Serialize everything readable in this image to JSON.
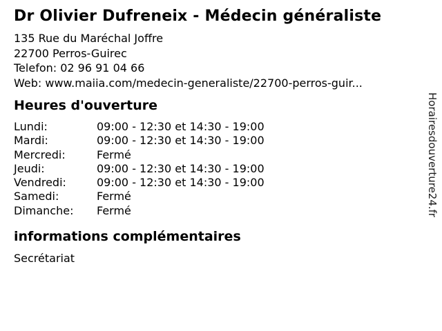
{
  "header": {
    "title": "Dr Olivier Dufreneix - Médecin généraliste"
  },
  "contact": {
    "address_line1": "135 Rue du Maréchal Joffre",
    "address_line2": "22700 Perros-Guirec",
    "phone_label": "Telefon:",
    "phone_number": "02 96 91 04 66",
    "web_label": "Web:",
    "web_url": "www.maiia.com/medecin-generaliste/22700-perros-guir..."
  },
  "hours": {
    "heading": "Heures d'ouverture",
    "rows": [
      {
        "day": "Lundi:",
        "time": "09:00 - 12:30 et 14:30 - 19:00"
      },
      {
        "day": "Mardi:",
        "time": "09:00 - 12:30 et 14:30 - 19:00"
      },
      {
        "day": "Mercredi:",
        "time": "Fermé"
      },
      {
        "day": "Jeudi:",
        "time": "09:00 - 12:30 et 14:30 - 19:00"
      },
      {
        "day": "Vendredi:",
        "time": "09:00 - 12:30 et 14:30 - 19:00"
      },
      {
        "day": "Samedi:",
        "time": "Fermé"
      },
      {
        "day": "Dimanche:",
        "time": "Fermé"
      }
    ]
  },
  "extra": {
    "heading": "informations complémentaires",
    "text": "Secrétariat"
  },
  "watermark": "Horairesdouverture24.fr",
  "colors": {
    "text": "#000000",
    "background": "#ffffff",
    "watermark_text": "#1a1a1a"
  }
}
